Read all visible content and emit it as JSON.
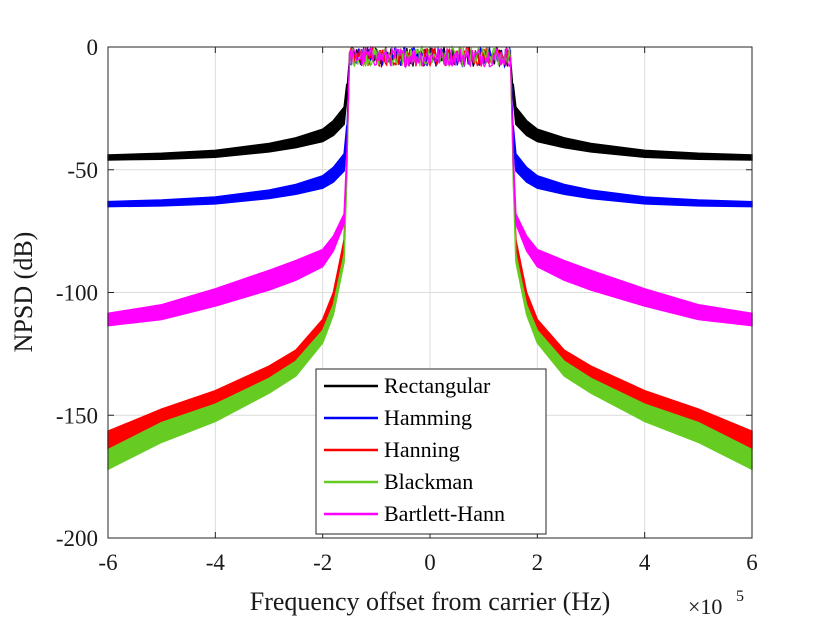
{
  "chart_data": {
    "type": "line",
    "title": "",
    "xlabel": "Frequency offset from carrier (Hz)",
    "ylabel": "NPSD (dB)",
    "x_exponent_label": "×10",
    "x_exponent_power": "5",
    "xlim": [
      -6,
      6
    ],
    "ylim": [
      -200,
      0
    ],
    "x_ticks": [
      -6,
      -4,
      -2,
      0,
      2,
      4,
      6
    ],
    "x_tick_labels": [
      "-6",
      "-4",
      "-2",
      "0",
      "2",
      "4",
      "6"
    ],
    "y_ticks": [
      0,
      -50,
      -100,
      -150,
      -200
    ],
    "y_tick_labels": [
      "0",
      "-50",
      "-100",
      "-150",
      "-200"
    ],
    "grid": true,
    "legend_position": "bottom-center",
    "passband_edge": 1.5,
    "series": [
      {
        "name": "Rectangular",
        "color": "#000000",
        "x": [
          -6,
          -5,
          -4,
          -3,
          -2.5,
          -2,
          -1.8,
          -1.6,
          -1.55,
          1.55,
          1.6,
          1.8,
          2,
          2.5,
          3,
          4,
          5,
          6
        ],
        "values": [
          -45,
          -44.5,
          -43.5,
          -41,
          -39,
          -36,
          -33,
          -28,
          -18,
          -18,
          -28,
          -33,
          -36,
          -39,
          -41,
          -43.5,
          -44.5,
          -45
        ],
        "band_halfwidth": [
          1,
          1.2,
          1.4,
          1.7,
          2,
          2.5,
          3,
          3.5,
          3,
          3,
          3.5,
          3,
          2.5,
          2,
          1.7,
          1.4,
          1.2,
          1
        ]
      },
      {
        "name": "Hamming",
        "color": "#0000ff",
        "x": [
          -6,
          -5,
          -4,
          -3,
          -2.5,
          -2,
          -1.8,
          -1.6,
          -1.55,
          1.55,
          1.6,
          1.8,
          2,
          2.5,
          3,
          4,
          5,
          6
        ],
        "values": [
          -64,
          -63.5,
          -62.5,
          -60,
          -58,
          -55,
          -52,
          -47,
          -35,
          -35,
          -47,
          -52,
          -55,
          -58,
          -60,
          -62.5,
          -63.5,
          -64
        ],
        "band_halfwidth": [
          1,
          1.2,
          1.4,
          1.7,
          2,
          2.5,
          3,
          3.5,
          3,
          3,
          3.5,
          3,
          2.5,
          2,
          1.7,
          1.4,
          1.2,
          1
        ]
      },
      {
        "name": "Hanning",
        "color": "#ff0000",
        "x": [
          -6,
          -5,
          -4,
          -3,
          -2.5,
          -2,
          -1.8,
          -1.6,
          -1.55,
          1.55,
          1.6,
          1.8,
          2,
          2.5,
          3,
          4,
          5,
          6
        ],
        "values": [
          -160,
          -151,
          -143,
          -133,
          -126,
          -113,
          -102,
          -80,
          -50,
          -50,
          -80,
          -102,
          -113,
          -126,
          -133,
          -143,
          -151,
          -160
        ],
        "band_halfwidth": [
          3.5,
          3.5,
          3,
          3,
          2.5,
          2,
          2,
          1.5,
          1,
          1,
          1.5,
          2,
          2,
          2.5,
          3,
          3,
          3.5,
          3.5
        ]
      },
      {
        "name": "Blackman",
        "color": "#66cc22",
        "x": [
          -6,
          -5,
          -4,
          -3,
          -2.5,
          -2,
          -1.8,
          -1.6,
          -1.55,
          1.55,
          1.6,
          1.8,
          2,
          2.5,
          3,
          4,
          5,
          6
        ],
        "values": [
          -168,
          -157,
          -149,
          -138,
          -131,
          -118,
          -107,
          -86,
          -52,
          -52,
          -86,
          -107,
          -118,
          -131,
          -138,
          -149,
          -157,
          -168
        ],
        "band_halfwidth": [
          4,
          4,
          3.5,
          3,
          3,
          2.5,
          2,
          1.5,
          1,
          1,
          1.5,
          2,
          2.5,
          3,
          3,
          3.5,
          4,
          4
        ]
      },
      {
        "name": "Bartlett-Hann",
        "color": "#ff00ff",
        "x": [
          -6,
          -5,
          -4,
          -3,
          -2.5,
          -2,
          -1.8,
          -1.6,
          -1.55,
          1.55,
          1.6,
          1.8,
          2,
          2.5,
          3,
          4,
          5,
          6
        ],
        "values": [
          -111,
          -108,
          -102,
          -95,
          -91,
          -86,
          -80,
          -70,
          -45,
          -45,
          -70,
          -80,
          -86,
          -91,
          -95,
          -102,
          -108,
          -111
        ],
        "band_halfwidth": [
          2.5,
          3,
          3.5,
          4,
          4,
          3.5,
          3,
          2,
          1.5,
          1.5,
          2,
          3,
          3.5,
          4,
          4,
          3.5,
          3,
          2.5
        ]
      }
    ],
    "passband": {
      "x_start": -1.5,
      "x_end": 1.5,
      "level": -4,
      "ripple": 4
    }
  }
}
